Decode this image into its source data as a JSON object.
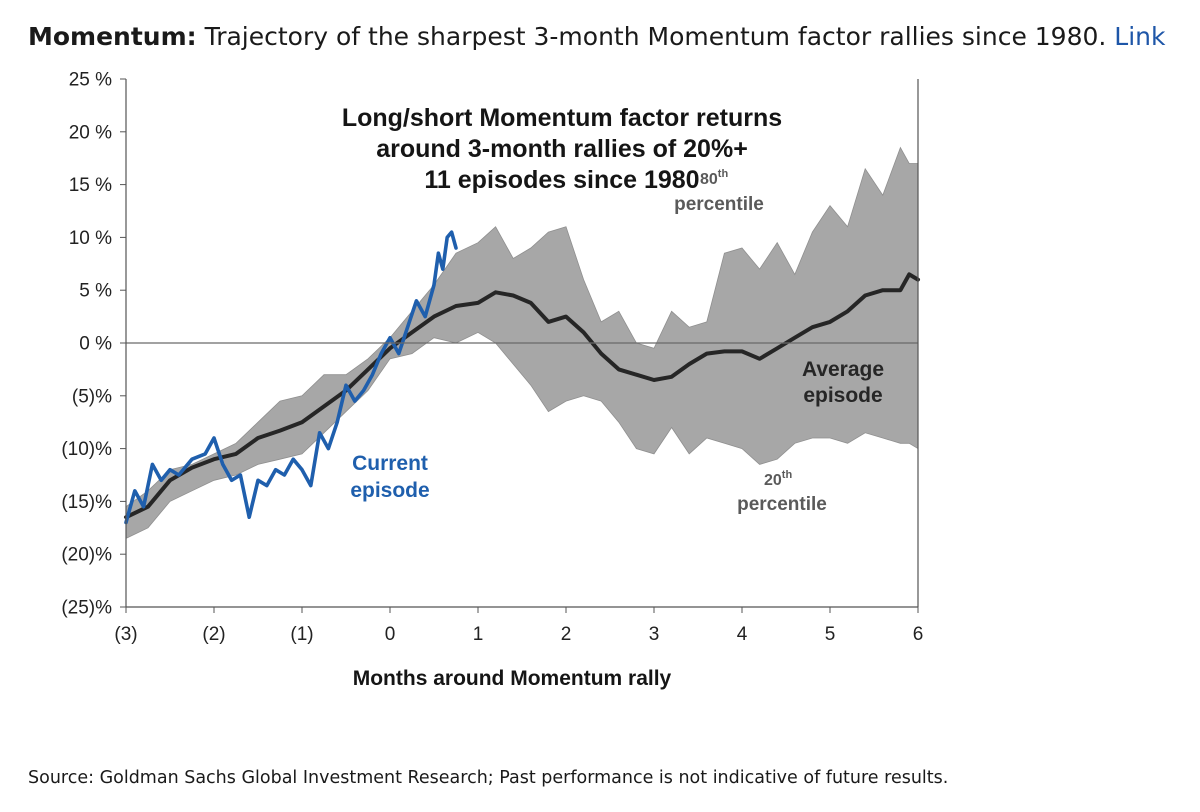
{
  "header": {
    "bold": "Momentum:",
    "text": "Trajectory of the sharpest 3-month Momentum factor rallies since 1980.",
    "link": "Link"
  },
  "footer": {
    "source": "Source: Goldman Sachs Global Investment Research; Past performance is not indicative of future results."
  },
  "colors": {
    "band": "#a7a7a7",
    "average": "#262626",
    "current": "#1f5fad",
    "link": "#1e56a8"
  },
  "chart_data": {
    "type": "area",
    "title_lines": [
      "Long/short Momentum factor returns",
      "around 3-month rallies of 20%+",
      "11 episodes since 1980"
    ],
    "xlabel": "Months around Momentum rally",
    "xlim": [
      -3,
      6
    ],
    "ylim": [
      -25,
      25
    ],
    "grid": false,
    "x_ticks": [
      {
        "value": -3,
        "label": "(3)"
      },
      {
        "value": -2,
        "label": "(2)"
      },
      {
        "value": -1,
        "label": "(1)"
      },
      {
        "value": 0,
        "label": "0"
      },
      {
        "value": 1,
        "label": "1"
      },
      {
        "value": 2,
        "label": "2"
      },
      {
        "value": 3,
        "label": "3"
      },
      {
        "value": 4,
        "label": "4"
      },
      {
        "value": 5,
        "label": "5"
      },
      {
        "value": 6,
        "label": "6"
      }
    ],
    "y_ticks": [
      {
        "value": 25,
        "label": "25 %"
      },
      {
        "value": 20,
        "label": "20 %"
      },
      {
        "value": 15,
        "label": "15 %"
      },
      {
        "value": 10,
        "label": "10 %"
      },
      {
        "value": 5,
        "label": "5 %"
      },
      {
        "value": 0,
        "label": "0 %"
      },
      {
        "value": -5,
        "label": "(5)%"
      },
      {
        "value": -10,
        "label": "(10)%"
      },
      {
        "value": -15,
        "label": "(15)%"
      },
      {
        "value": -20,
        "label": "(20)%"
      },
      {
        "value": -25,
        "label": "(25)%"
      }
    ],
    "annotations": {
      "p80_label": "80",
      "p80_sup": "th",
      "p80_word": "percentile",
      "p20_label": "20",
      "p20_sup": "th",
      "p20_word": "percentile",
      "avg_line1": "Average",
      "avg_line2": "episode",
      "cur_line1": "Current",
      "cur_line2": "episode"
    },
    "band": {
      "x": [
        -3.0,
        -2.75,
        -2.5,
        -2.25,
        -2.0,
        -1.75,
        -1.5,
        -1.25,
        -1.0,
        -0.75,
        -0.5,
        -0.25,
        0.0,
        0.25,
        0.5,
        0.75,
        1.0,
        1.2,
        1.4,
        1.6,
        1.8,
        2.0,
        2.2,
        2.4,
        2.6,
        2.8,
        3.0,
        3.2,
        3.4,
        3.6,
        3.8,
        4.0,
        4.2,
        4.4,
        4.6,
        4.8,
        5.0,
        5.2,
        5.4,
        5.6,
        5.8,
        5.9,
        6.0
      ],
      "upper": [
        -15.5,
        -14.0,
        -12.0,
        -11.5,
        -10.5,
        -9.5,
        -7.5,
        -5.5,
        -5.0,
        -3.0,
        -3.0,
        -1.5,
        0.5,
        3.0,
        5.5,
        8.5,
        9.5,
        11.0,
        8.0,
        9.0,
        10.5,
        11.0,
        6.0,
        2.0,
        3.0,
        0.0,
        -0.5,
        3.0,
        1.5,
        2.0,
        8.5,
        9.0,
        7.0,
        9.5,
        6.5,
        10.5,
        13.0,
        11.0,
        16.5,
        14.0,
        18.5,
        17.0,
        17.0
      ],
      "lower": [
        -18.5,
        -17.5,
        -15.0,
        -14.0,
        -13.0,
        -12.5,
        -11.5,
        -11.0,
        -10.5,
        -8.5,
        -6.5,
        -4.5,
        -1.5,
        -1.0,
        0.5,
        0.0,
        1.0,
        0.0,
        -2.0,
        -4.0,
        -6.5,
        -5.5,
        -5.0,
        -5.5,
        -7.5,
        -10.0,
        -10.5,
        -8.0,
        -10.5,
        -9.0,
        -9.5,
        -10.0,
        -11.5,
        -11.0,
        -9.5,
        -9.0,
        -9.0,
        -9.5,
        -8.5,
        -9.0,
        -9.5,
        -9.5,
        -10.0
      ]
    },
    "series": [
      {
        "name": "Average episode",
        "x": [
          -3.0,
          -2.75,
          -2.5,
          -2.25,
          -2.0,
          -1.75,
          -1.5,
          -1.25,
          -1.0,
          -0.75,
          -0.5,
          -0.25,
          0.0,
          0.25,
          0.5,
          0.75,
          1.0,
          1.2,
          1.4,
          1.6,
          1.8,
          2.0,
          2.2,
          2.4,
          2.6,
          2.8,
          3.0,
          3.2,
          3.4,
          3.6,
          3.8,
          4.0,
          4.2,
          4.4,
          4.6,
          4.8,
          5.0,
          5.2,
          5.4,
          5.6,
          5.8,
          5.9,
          6.0
        ],
        "y": [
          -16.5,
          -15.5,
          -13.0,
          -11.8,
          -11.0,
          -10.5,
          -9.0,
          -8.3,
          -7.5,
          -6.0,
          -4.5,
          -2.5,
          -0.5,
          1.0,
          2.5,
          3.5,
          3.8,
          4.8,
          4.5,
          3.8,
          2.0,
          2.5,
          1.0,
          -1.0,
          -2.5,
          -3.0,
          -3.5,
          -3.2,
          -2.0,
          -1.0,
          -0.8,
          -0.8,
          -1.5,
          -0.5,
          0.5,
          1.5,
          2.0,
          3.0,
          4.5,
          5.0,
          5.0,
          6.5,
          6.0
        ]
      },
      {
        "name": "Current episode",
        "x": [
          -3.0,
          -2.9,
          -2.8,
          -2.75,
          -2.7,
          -2.6,
          -2.5,
          -2.4,
          -2.25,
          -2.1,
          -2.0,
          -1.9,
          -1.8,
          -1.7,
          -1.6,
          -1.5,
          -1.4,
          -1.3,
          -1.2,
          -1.1,
          -1.0,
          -0.9,
          -0.8,
          -0.7,
          -0.6,
          -0.5,
          -0.4,
          -0.3,
          -0.2,
          -0.1,
          0.0,
          0.1,
          0.2,
          0.3,
          0.4,
          0.5,
          0.55,
          0.6,
          0.65,
          0.7,
          0.75
        ],
        "y": [
          -17.0,
          -14.0,
          -15.5,
          -13.5,
          -11.5,
          -13.0,
          -12.0,
          -12.5,
          -11.0,
          -10.5,
          -9.0,
          -11.5,
          -13.0,
          -12.5,
          -16.5,
          -13.0,
          -13.5,
          -12.0,
          -12.5,
          -11.0,
          -12.0,
          -13.5,
          -8.5,
          -10.0,
          -7.5,
          -4.0,
          -5.5,
          -4.5,
          -3.0,
          -1.0,
          0.5,
          -1.0,
          1.5,
          4.0,
          2.5,
          5.5,
          8.5,
          7.0,
          10.0,
          10.5,
          9.0
        ]
      }
    ]
  }
}
